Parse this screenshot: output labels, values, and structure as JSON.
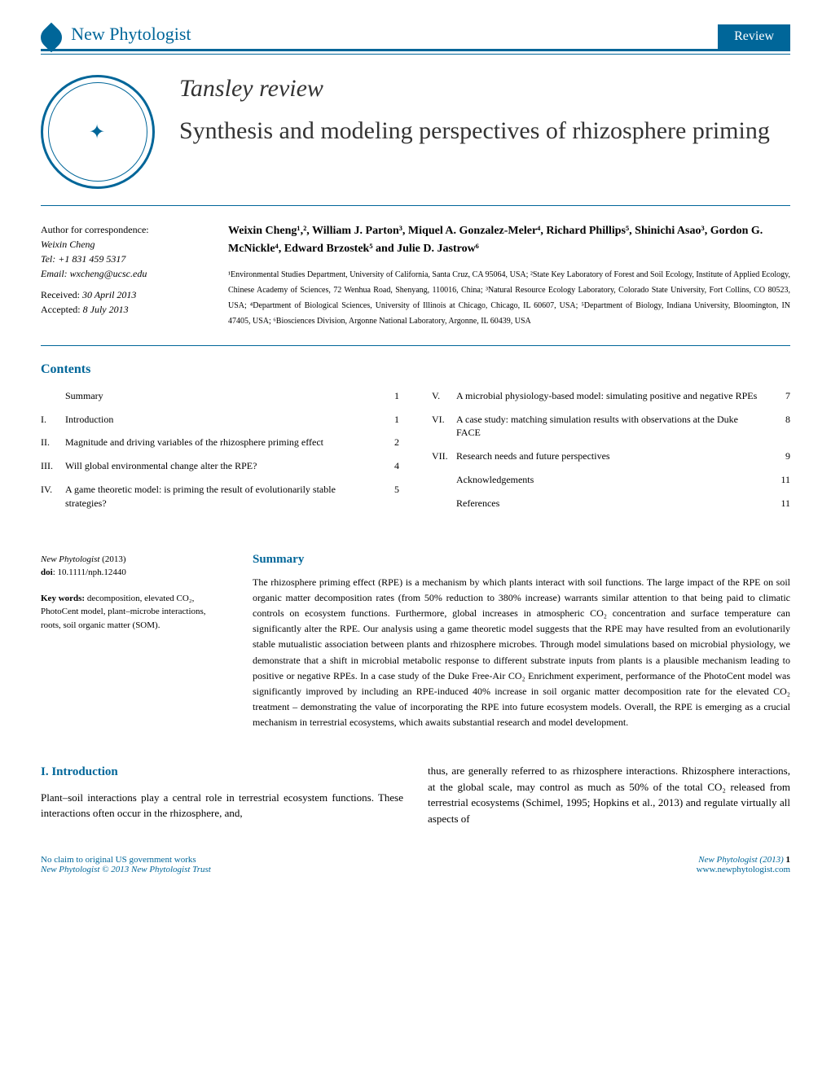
{
  "header": {
    "journal_new": "New",
    "journal_phyto": "Phytologist",
    "review_badge": "Review"
  },
  "article": {
    "series": "Tansley review",
    "title": "Synthesis and modeling perspectives of rhizosphere priming"
  },
  "correspondence": {
    "label": "Author for correspondence:",
    "name": "Weixin Cheng",
    "tel": "Tel: +1 831 459 5317",
    "email": "Email: wxcheng@ucsc.edu",
    "received": "Received: 30 April 2013",
    "accepted": "Accepted: 8 July 2013"
  },
  "authors": "Weixin Cheng¹,², William J. Parton³, Miquel A. Gonzalez-Meler⁴, Richard Phillips⁵, Shinichi Asao³, Gordon G. McNickle⁴, Edward Brzostek⁵ and Julie D. Jastrow⁶",
  "affiliations": "¹Environmental Studies Department, University of California, Santa Cruz, CA 95064, USA; ²State Key Laboratory of Forest and Soil Ecology, Institute of Applied Ecology, Chinese Academy of Sciences, 72 Wenhua Road, Shenyang, 110016, China; ³Natural Resource Ecology Laboratory, Colorado State University, Fort Collins, CO 80523, USA; ⁴Department of Biological Sciences, University of Illinois at Chicago, Chicago, IL  60607, USA; ⁵Department of Biology, Indiana University, Bloomington, IN  47405, USA; ⁶Biosciences Division, Argonne National Laboratory, Argonne, IL  60439, USA",
  "contents": {
    "heading": "Contents",
    "left": [
      {
        "num": "",
        "title": "Summary",
        "page": "1"
      },
      {
        "num": "I.",
        "title": "Introduction",
        "page": "1"
      },
      {
        "num": "II.",
        "title": "Magnitude and driving variables of the rhizosphere priming effect",
        "page": "2"
      },
      {
        "num": "III.",
        "title": "Will global environmental change alter the RPE?",
        "page": "4"
      },
      {
        "num": "IV.",
        "title": "A game theoretic model: is priming the result of evolutionarily stable strategies?",
        "page": "5"
      }
    ],
    "right": [
      {
        "num": "V.",
        "title": "A microbial physiology-based model: simulating positive and negative RPEs",
        "page": "7"
      },
      {
        "num": "VI.",
        "title": "A case study: matching simulation results with observations at the Duke FACE",
        "page": "8"
      },
      {
        "num": "VII.",
        "title": "Research needs and future perspectives",
        "page": "9"
      },
      {
        "num": "",
        "title": "Acknowledgements",
        "page": "11"
      },
      {
        "num": "",
        "title": "References",
        "page": "11"
      }
    ]
  },
  "summary_left": {
    "citation_journal": "New Phytologist",
    "citation_year": "(2013)",
    "doi_label": "doi",
    "doi": ": 10.1111/nph.12440",
    "keywords_label": "Key words:",
    "keywords": " decomposition, elevated CO₂, PhotoCent model, plant–microbe interactions, roots, soil organic matter (SOM)."
  },
  "summary": {
    "heading": "Summary",
    "text": "The rhizosphere priming effect (RPE) is a mechanism by which plants interact with soil functions. The large impact of the RPE on soil organic matter decomposition rates (from 50% reduction to 380% increase) warrants similar attention to that being paid to climatic controls on ecosystem functions. Furthermore, global increases in atmospheric CO₂ concentration and surface temperature can significantly alter the RPE. Our analysis using a game theoretic model suggests that the RPE may have resulted from an evolutionarily stable mutualistic association between plants and rhizosphere microbes. Through model simulations based on microbial physiology, we demonstrate that a shift in microbial metabolic response to different substrate inputs from plants is a plausible mechanism leading to positive or negative RPEs. In a case study of the Duke Free-Air CO₂ Enrichment experiment, performance of the PhotoCent model was significantly improved by including an RPE-induced 40% increase in soil organic matter decomposition rate for the elevated CO₂ treatment – demonstrating the value of incorporating the RPE into future ecosystem models. Overall, the RPE is emerging as a crucial mechanism in terrestrial ecosystems, which awaits substantial research and model development."
  },
  "introduction": {
    "heading": "I. Introduction",
    "col1": "Plant–soil interactions play a central role in terrestrial ecosystem functions. These interactions often occur in the rhizosphere, and,",
    "col2": "thus, are generally referred to as rhizosphere interactions. Rhizosphere interactions, at the global scale, may control as much as 50% of the total CO₂ released from terrestrial ecosystems (Schimel, 1995; Hopkins et al., 2013) and regulate virtually all aspects of"
  },
  "footer": {
    "left1": "No claim to original US government works",
    "left2": "New Phytologist © 2013 New Phytologist Trust",
    "right1": "New Phytologist (2013)",
    "page": "1",
    "right2": "www.newphytologist.com"
  }
}
